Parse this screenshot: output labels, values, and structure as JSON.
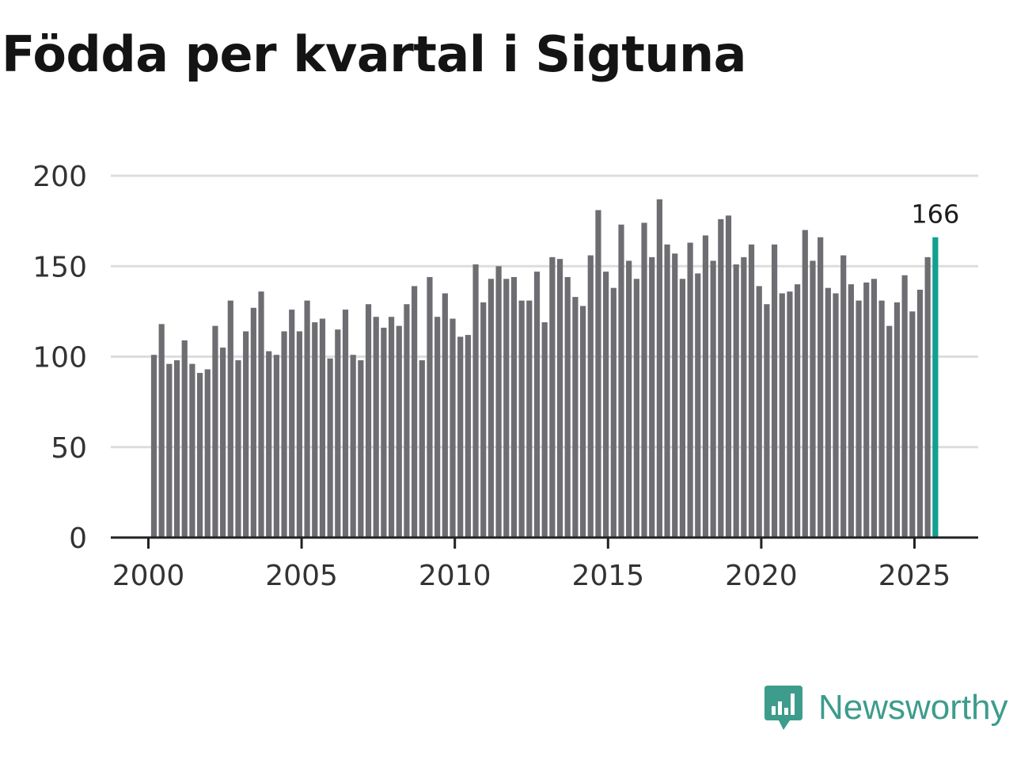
{
  "chart_data": {
    "type": "bar",
    "title": "Födda per kvartal i Sigtuna",
    "xlabel": "",
    "ylabel": "",
    "ylim": [
      0,
      200
    ],
    "yticks": [
      "0",
      "50",
      "100",
      "150",
      "200"
    ],
    "xticks": [
      "2000",
      "2005",
      "2010",
      "2015",
      "2020",
      "2025"
    ],
    "start_year": 2000,
    "colors": {
      "bar": "#6e6d72",
      "highlight": "#12a090",
      "grid": "#dddddd",
      "axis": "#222222"
    },
    "values": [
      101,
      118,
      96,
      98,
      109,
      96,
      91,
      93,
      117,
      105,
      131,
      98,
      114,
      127,
      136,
      103,
      101,
      114,
      126,
      114,
      131,
      119,
      121,
      99,
      115,
      126,
      101,
      98,
      129,
      122,
      116,
      122,
      117,
      129,
      139,
      98,
      144,
      122,
      135,
      121,
      111,
      112,
      151,
      130,
      143,
      150,
      143,
      144,
      131,
      131,
      147,
      119,
      155,
      154,
      144,
      133,
      128,
      156,
      181,
      147,
      138,
      173,
      153,
      143,
      174,
      155,
      187,
      162,
      157,
      143,
      163,
      146,
      167,
      153,
      176,
      178,
      151,
      155,
      162,
      139,
      129,
      162,
      135,
      136,
      140,
      170,
      153,
      166,
      138,
      135,
      156,
      140,
      131,
      141,
      143,
      131,
      117,
      130,
      145,
      125,
      137,
      155,
      166
    ],
    "last_value_label": "166"
  },
  "brand": {
    "name": "Newsworthy",
    "icon": "newsworthy-logo-icon"
  }
}
